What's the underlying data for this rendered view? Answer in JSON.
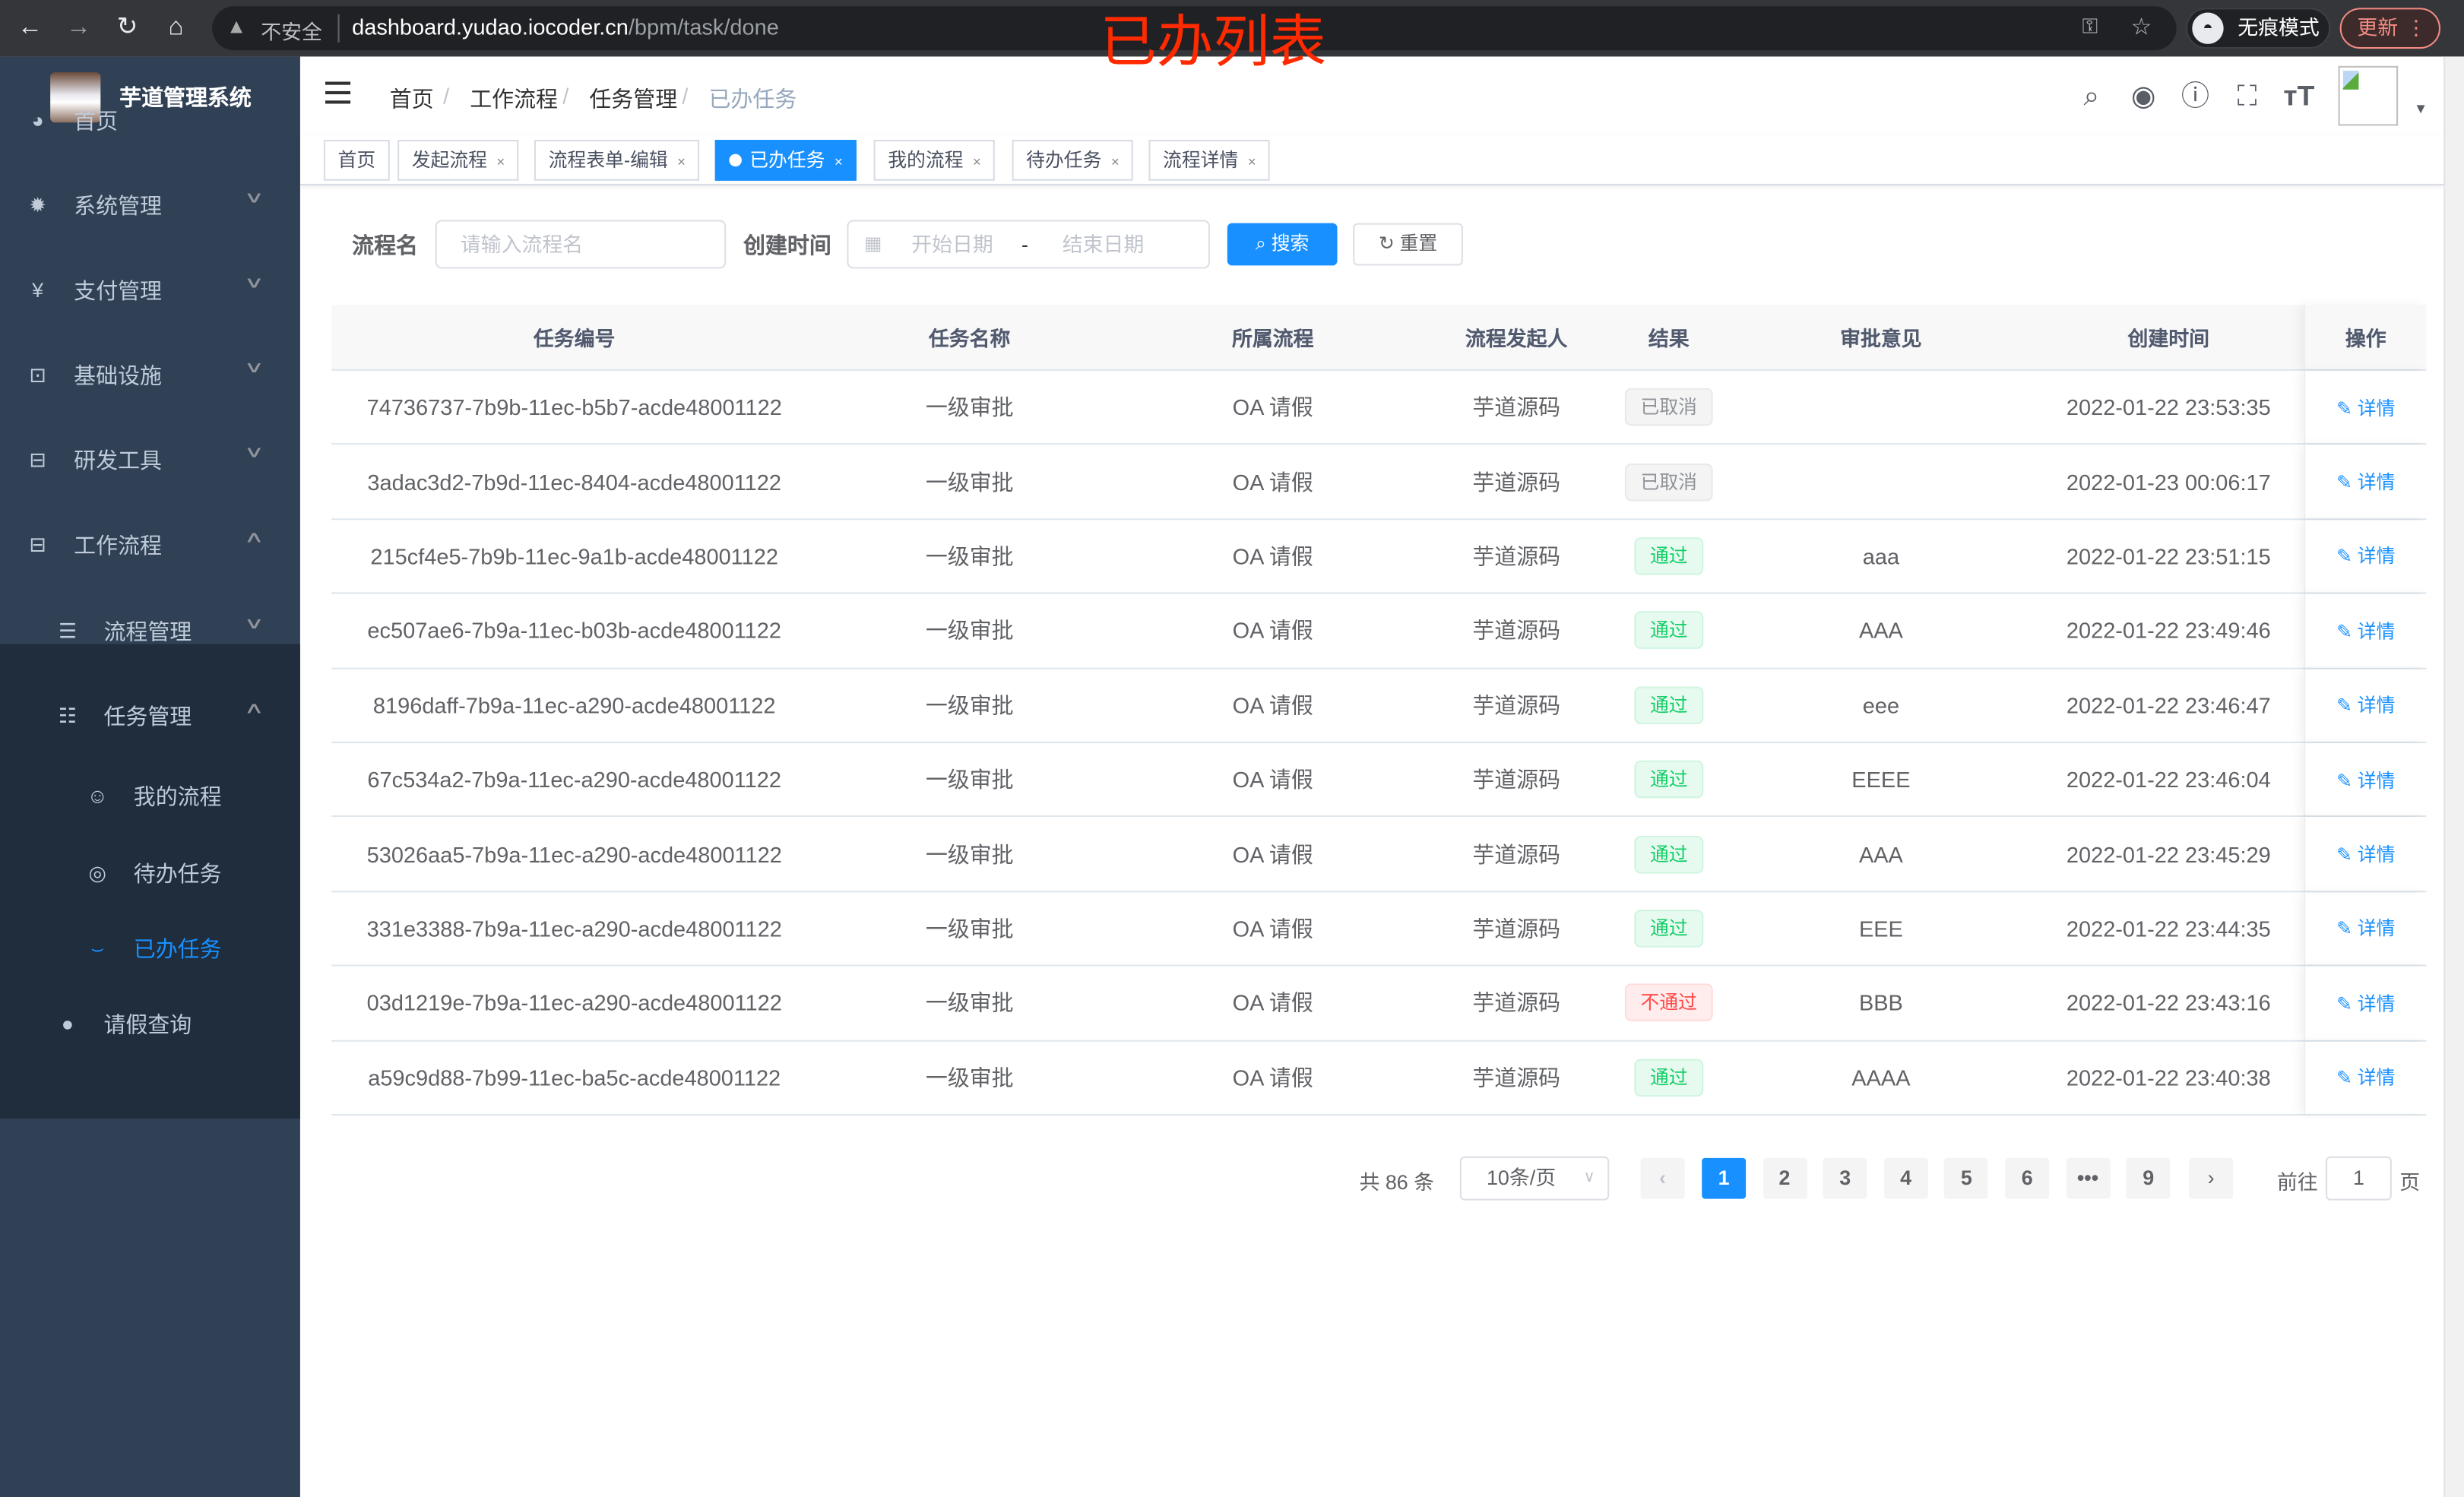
{
  "browser": {
    "insecure_label": "不安全",
    "url_host": "dashboard.yudao.iocoder.cn",
    "url_path": "/bpm/task/done",
    "incognito_label": "无痕模式",
    "update_label": "更新"
  },
  "annotation": "已办列表",
  "sidebar": {
    "title": "芋道管理系统",
    "items": [
      {
        "label": "首页",
        "icon": "dashboard-icon"
      },
      {
        "label": "系统管理",
        "icon": "gear-icon",
        "expanded": false
      },
      {
        "label": "支付管理",
        "icon": "yen-icon",
        "expanded": false
      },
      {
        "label": "基础设施",
        "icon": "monitor-icon",
        "expanded": false
      },
      {
        "label": "研发工具",
        "icon": "toolbox-icon",
        "expanded": false
      },
      {
        "label": "工作流程",
        "icon": "toolbox-icon",
        "expanded": true
      },
      {
        "label": "流程管理",
        "icon": "list-icon",
        "expanded": false
      },
      {
        "label": "任务管理",
        "icon": "task-icon",
        "expanded": true
      },
      {
        "label": "我的流程",
        "icon": "face-icon"
      },
      {
        "label": "待办任务",
        "icon": "eye-icon"
      },
      {
        "label": "已办任务",
        "icon": "eye-closed-icon",
        "active": true
      },
      {
        "label": "请假查询",
        "icon": "user-icon"
      }
    ]
  },
  "breadcrumb": [
    "首页",
    "工作流程",
    "任务管理",
    "已办任务"
  ],
  "tags": [
    {
      "label": "首页",
      "closable": false
    },
    {
      "label": "发起流程",
      "closable": true
    },
    {
      "label": "流程表单-编辑",
      "closable": true
    },
    {
      "label": "已办任务",
      "closable": true,
      "active": true
    },
    {
      "label": "我的流程",
      "closable": true
    },
    {
      "label": "待办任务",
      "closable": true
    },
    {
      "label": "流程详情",
      "closable": true
    }
  ],
  "search": {
    "name_label": "流程名",
    "name_placeholder": "请输入流程名",
    "time_label": "创建时间",
    "start_placeholder": "开始日期",
    "range_separator": "-",
    "end_placeholder": "结束日期",
    "search_button": "搜索",
    "reset_button": "重置"
  },
  "table": {
    "columns": [
      "任务编号",
      "任务名称",
      "所属流程",
      "流程发起人",
      "结果",
      "审批意见",
      "创建时间",
      "操作"
    ],
    "action_label": "详情",
    "rows": [
      {
        "id": "74736737-7b9b-11ec-b5b7-acde48001122",
        "name": "一级审批",
        "process": "OA 请假",
        "starter": "芋道源码",
        "result": "已取消",
        "result_type": "info",
        "comment": "",
        "created": "2022-01-22 23:53:35"
      },
      {
        "id": "3adac3d2-7b9d-11ec-8404-acde48001122",
        "name": "一级审批",
        "process": "OA 请假",
        "starter": "芋道源码",
        "result": "已取消",
        "result_type": "info",
        "comment": "",
        "created": "2022-01-23 00:06:17"
      },
      {
        "id": "215cf4e5-7b9b-11ec-9a1b-acde48001122",
        "name": "一级审批",
        "process": "OA 请假",
        "starter": "芋道源码",
        "result": "通过",
        "result_type": "success",
        "comment": "aaa",
        "created": "2022-01-22 23:51:15"
      },
      {
        "id": "ec507ae6-7b9a-11ec-b03b-acde48001122",
        "name": "一级审批",
        "process": "OA 请假",
        "starter": "芋道源码",
        "result": "通过",
        "result_type": "success",
        "comment": "AAA",
        "created": "2022-01-22 23:49:46"
      },
      {
        "id": "8196daff-7b9a-11ec-a290-acde48001122",
        "name": "一级审批",
        "process": "OA 请假",
        "starter": "芋道源码",
        "result": "通过",
        "result_type": "success",
        "comment": "eee",
        "created": "2022-01-22 23:46:47"
      },
      {
        "id": "67c534a2-7b9a-11ec-a290-acde48001122",
        "name": "一级审批",
        "process": "OA 请假",
        "starter": "芋道源码",
        "result": "通过",
        "result_type": "success",
        "comment": "EEEE",
        "created": "2022-01-22 23:46:04"
      },
      {
        "id": "53026aa5-7b9a-11ec-a290-acde48001122",
        "name": "一级审批",
        "process": "OA 请假",
        "starter": "芋道源码",
        "result": "通过",
        "result_type": "success",
        "comment": "AAA",
        "created": "2022-01-22 23:45:29"
      },
      {
        "id": "331e3388-7b9a-11ec-a290-acde48001122",
        "name": "一级审批",
        "process": "OA 请假",
        "starter": "芋道源码",
        "result": "通过",
        "result_type": "success",
        "comment": "EEE",
        "created": "2022-01-22 23:44:35"
      },
      {
        "id": "03d1219e-7b9a-11ec-a290-acde48001122",
        "name": "一级审批",
        "process": "OA 请假",
        "starter": "芋道源码",
        "result": "不通过",
        "result_type": "danger",
        "comment": "BBB",
        "created": "2022-01-22 23:43:16"
      },
      {
        "id": "a59c9d88-7b99-11ec-ba5c-acde48001122",
        "name": "一级审批",
        "process": "OA 请假",
        "starter": "芋道源码",
        "result": "通过",
        "result_type": "success",
        "comment": "AAAA",
        "created": "2022-01-22 23:40:38"
      }
    ]
  },
  "pagination": {
    "total_label": "共 86 条",
    "page_size": "10条/页",
    "pages": [
      "1",
      "2",
      "3",
      "4",
      "5",
      "6",
      "•••",
      "9"
    ],
    "current": "1",
    "goto_prefix": "前往",
    "goto_value": "1",
    "goto_suffix": "页"
  },
  "colors": {
    "primary": "#1890ff",
    "sidebar": "#304156",
    "submenu": "#1f2d3d",
    "annotation": "#ff2a00"
  }
}
